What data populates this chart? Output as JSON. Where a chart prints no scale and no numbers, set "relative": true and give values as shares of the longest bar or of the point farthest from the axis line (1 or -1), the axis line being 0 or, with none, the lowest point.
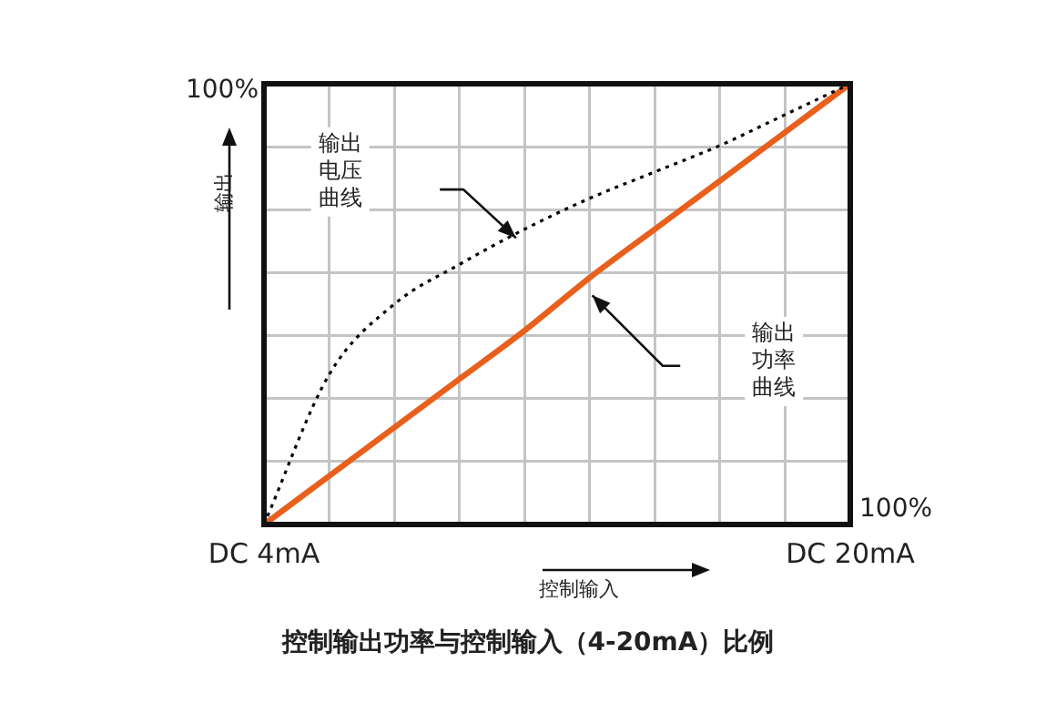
{
  "chart_data": {
    "type": "line",
    "title": "控制输出功率与控制输入（4-20mA）比例",
    "xlabel": "控制输入",
    "ylabel": "输出",
    "relative": true,
    "grid": true,
    "legend": false,
    "marker": "none",
    "categories": [
      "DC 4mA",
      null,
      null,
      null,
      null,
      null,
      null,
      null,
      null,
      "DC 20mA"
    ],
    "tick_labels": "x",
    "series": [
      {
        "color": "#000000",
        "line_style": "dotted",
        "values": [
          0,
          0.34,
          0.5,
          0.59,
          0.67,
          0.74,
          0.8,
          0.86,
          0.93,
          1
        ]
      },
      {
        "color": "#e8601c",
        "line_style": "solid",
        "values": [
          0,
          0.11,
          0.22,
          0.33,
          0.44,
          0.56,
          0.67,
          0.78,
          0.89,
          1
        ]
      }
    ],
    "annotations": [
      "100%",
      "100%",
      "输出电压曲线",
      "输出功率曲线"
    ]
  }
}
